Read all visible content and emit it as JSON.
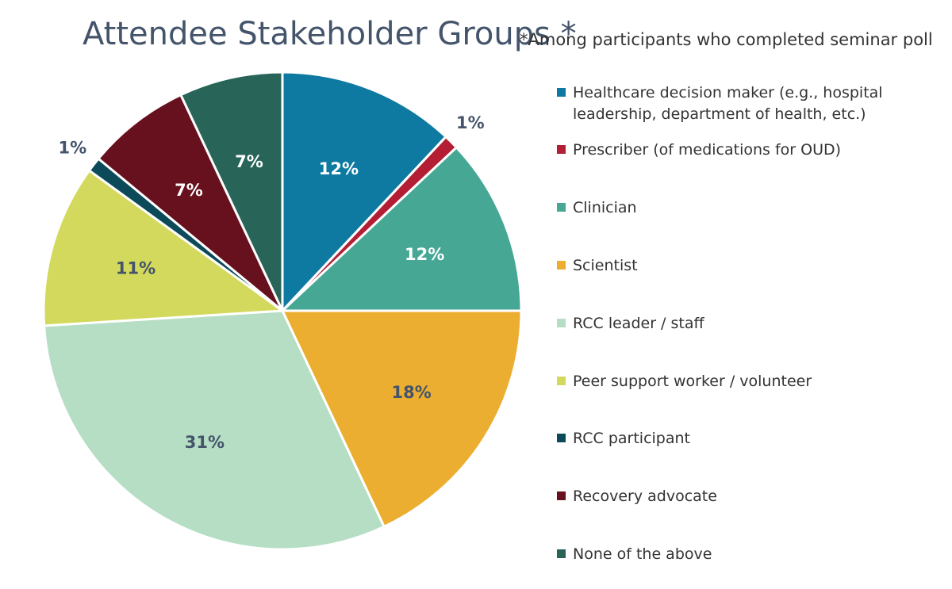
{
  "title": "Attendee Stakeholder Groups *",
  "subtitle": "*Among participants who completed seminar poll",
  "chart_data": {
    "type": "pie",
    "title": "Attendee Stakeholder Groups *",
    "subtitle": "*Among participants who completed seminar poll",
    "legend_position": "right",
    "slices": [
      {
        "name": "Healthcare decision maker (e.g., hospital leadership, department of health, etc.)",
        "value": 12,
        "label": "12%",
        "color": "#0f7aa1"
      },
      {
        "name": "Prescriber (of medications for OUD)",
        "value": 1,
        "label": "1%",
        "color": "#b41e35"
      },
      {
        "name": "Clinician",
        "value": 12,
        "label": "12%",
        "color": "#45a794"
      },
      {
        "name": "Scientist",
        "value": 18,
        "label": "18%",
        "color": "#ecae30"
      },
      {
        "name": "RCC leader / staff",
        "value": 31,
        "label": "31%",
        "color": "#b5dec4"
      },
      {
        "name": "Peer support worker / volunteer",
        "value": 11,
        "label": "11%",
        "color": "#d3d95c"
      },
      {
        "name": "RCC participant",
        "value": 1,
        "label": "1%",
        "color": "#0c4a5a"
      },
      {
        "name": "Recovery advocate",
        "value": 7,
        "label": "7%",
        "color": "#68111e"
      },
      {
        "name": "None of the above",
        "value": 7,
        "label": "7%",
        "color": "#286558"
      }
    ]
  }
}
